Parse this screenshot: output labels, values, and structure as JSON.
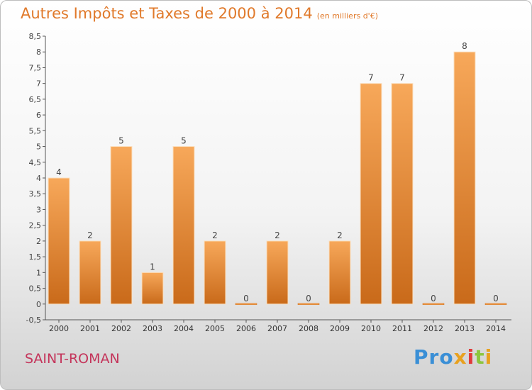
{
  "title": "Autres Impôts et Taxes de 2000 à 2014",
  "subtitle": "(en milliers d'€)",
  "commune": "SAINT-ROMAN",
  "logo": {
    "text": "Proxiti",
    "parts": [
      "Pro",
      "x",
      "i",
      "t",
      "i"
    ]
  },
  "colors": {
    "title": "#e0792a",
    "commune": "#c4355b",
    "bar_top": "#f7a85a",
    "bar_bottom": "#c96a1a"
  },
  "chart_data": {
    "type": "bar",
    "title": "Autres Impôts et Taxes de 2000 à 2014",
    "subtitle": "(en milliers d'€)",
    "categories": [
      "2000",
      "2001",
      "2002",
      "2003",
      "2004",
      "2005",
      "2006",
      "2007",
      "2008",
      "2009",
      "2010",
      "2011",
      "2012",
      "2013",
      "2014"
    ],
    "values": [
      4,
      2,
      5,
      1,
      5,
      2,
      0,
      2,
      0,
      2,
      7,
      7,
      0,
      8,
      0
    ],
    "data_labels": [
      "4",
      "2",
      "5",
      "1",
      "5",
      "2",
      "0",
      "2",
      "0",
      "2",
      "7",
      "7",
      "0",
      "8",
      "0"
    ],
    "ylim": [
      -0.5,
      8.5
    ],
    "yticks": [
      "-0,5",
      "0",
      "0,5",
      "1",
      "1,5",
      "2",
      "2,5",
      "3",
      "3,5",
      "4",
      "4,5",
      "5",
      "5,5",
      "6",
      "6,5",
      "7",
      "7,5",
      "8",
      "8,5"
    ],
    "ytick_values": [
      -0.5,
      0,
      0.5,
      1,
      1.5,
      2,
      2.5,
      3,
      3.5,
      4,
      4.5,
      5,
      5.5,
      6,
      6.5,
      7,
      7.5,
      8,
      8.5
    ],
    "grid": false,
    "legend": "none"
  }
}
